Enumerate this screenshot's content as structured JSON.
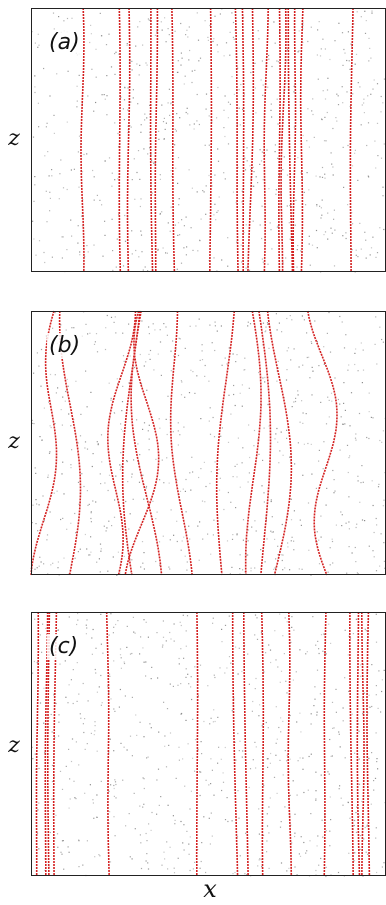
{
  "panels": [
    {
      "label": "(a)",
      "lines": [
        [
          0.145,
          0.145
        ],
        [
          0.245,
          0.255
        ],
        [
          0.275,
          0.275
        ],
        [
          0.335,
          0.345
        ],
        [
          0.355,
          0.35
        ],
        [
          0.395,
          0.405
        ],
        [
          0.505,
          0.505
        ],
        [
          0.575,
          0.585
        ],
        [
          0.595,
          0.6
        ],
        [
          0.625,
          0.615
        ],
        [
          0.665,
          0.655
        ],
        [
          0.7,
          0.7
        ],
        [
          0.715,
          0.705
        ],
        [
          0.725,
          0.735
        ],
        [
          0.745,
          0.74
        ],
        [
          0.765,
          0.76
        ],
        [
          0.905,
          0.9
        ]
      ],
      "wiggle": 0.004
    },
    {
      "label": "(b)",
      "lines": [
        [
          0.075,
          0.025
        ],
        [
          0.11,
          0.11
        ],
        [
          0.265,
          0.225
        ],
        [
          0.285,
          0.295
        ],
        [
          0.305,
          0.335
        ],
        [
          0.335,
          0.305
        ],
        [
          0.395,
          0.435
        ],
        [
          0.555,
          0.535
        ],
        [
          0.62,
          0.63
        ],
        [
          0.64,
          0.66
        ],
        [
          0.7,
          0.69
        ],
        [
          0.815,
          0.84
        ]
      ],
      "wiggle": 0.035
    },
    {
      "label": "(c)",
      "lines": [
        [
          0.02,
          0.015
        ],
        [
          0.045,
          0.04
        ],
        [
          0.05,
          0.05
        ],
        [
          0.07,
          0.065
        ],
        [
          0.215,
          0.22
        ],
        [
          0.465,
          0.47
        ],
        [
          0.57,
          0.58
        ],
        [
          0.6,
          0.61
        ],
        [
          0.65,
          0.655
        ],
        [
          0.725,
          0.73
        ],
        [
          0.83,
          0.825
        ],
        [
          0.9,
          0.905
        ],
        [
          0.92,
          0.925
        ],
        [
          0.935,
          0.935
        ],
        [
          0.95,
          0.95
        ]
      ],
      "wiggle": 0.003
    }
  ],
  "z_label": "z",
  "x_label": "x",
  "colors": {
    "line": "#d42020",
    "dots": "#777777",
    "frame": "#222222"
  }
}
